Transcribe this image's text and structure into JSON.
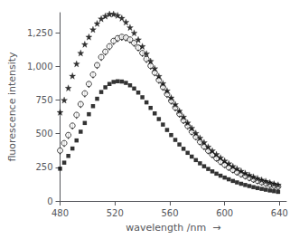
{
  "chart_data": {
    "type": "scatter",
    "xlabel": "wavelength /nm  →",
    "ylabel": "fluorescence intensity",
    "x": [
      480,
      483,
      486,
      489,
      492,
      495,
      498,
      501,
      504,
      507,
      510,
      513,
      516,
      519,
      522,
      525,
      528,
      531,
      534,
      537,
      540,
      543,
      546,
      549,
      552,
      555,
      558,
      561,
      564,
      567,
      570,
      573,
      576,
      579,
      582,
      585,
      588,
      591,
      594,
      597,
      600,
      603,
      606,
      609,
      612,
      615,
      618,
      621,
      624,
      627,
      630,
      633,
      636,
      639
    ],
    "series": [
      {
        "color": "#000000",
        "marker": "circle_open",
        "values": [
          375,
          430,
          490,
          560,
          640,
          720,
          800,
          870,
          940,
          1010,
          1070,
          1110,
          1150,
          1190,
          1210,
          1220,
          1215,
          1200,
          1175,
          1140,
          1100,
          1055,
          1005,
          955,
          900,
          848,
          795,
          745,
          695,
          648,
          600,
          558,
          515,
          477,
          440,
          406,
          374,
          345,
          318,
          293,
          270,
          250,
          232,
          215,
          200,
          186,
          173,
          161,
          150,
          140,
          131,
          122,
          114,
          107
        ]
      },
      {
        "color": "#000000",
        "marker": "star",
        "values": [
          660,
          750,
          840,
          930,
          1020,
          1100,
          1165,
          1220,
          1275,
          1320,
          1355,
          1375,
          1390,
          1390,
          1380,
          1360,
          1330,
          1290,
          1250,
          1200,
          1150,
          1095,
          1040,
          985,
          928,
          874,
          820,
          768,
          718,
          670,
          625,
          582,
          542,
          504,
          469,
          435,
          403,
          374,
          347,
          322,
          299,
          278,
          258,
          240,
          223,
          207,
          193,
          180,
          168,
          157,
          147,
          137,
          128,
          120
        ]
      },
      {
        "color": "#000000",
        "marker": "square",
        "values": [
          240,
          285,
          335,
          390,
          450,
          515,
          580,
          645,
          705,
          760,
          810,
          845,
          870,
          885,
          890,
          888,
          878,
          860,
          836,
          806,
          771,
          733,
          692,
          651,
          609,
          568,
          528,
          490,
          454,
          420,
          388,
          358,
          330,
          304,
          280,
          258,
          238,
          220,
          203,
          188,
          174,
          161,
          149,
          138,
          128,
          119,
          111,
          103,
          96,
          90,
          84,
          78,
          73,
          68
        ]
      },
      {
        "color": "#000000",
        "marker": "vline",
        "values": [
          370,
          425,
          485,
          555,
          635,
          715,
          795,
          865,
          935,
          1005,
          1065,
          1105,
          1145,
          1185,
          1205,
          1215,
          1210,
          1195,
          1170,
          1135,
          1095,
          1050,
          1000,
          950,
          895,
          843,
          790,
          740,
          690,
          643,
          596,
          554,
          512,
          474,
          437,
          403,
          371,
          342,
          315,
          290,
          267,
          247,
          229,
          212,
          197,
          183,
          170,
          158,
          148,
          138,
          129,
          120,
          112,
          105
        ]
      }
    ],
    "xlim": [
      480,
      645
    ],
    "xticks": [
      480,
      520,
      560,
      600,
      640
    ],
    "ylim": [
      0,
      1400
    ],
    "yticks": [
      0,
      250,
      500,
      750,
      1000,
      1250
    ],
    "grid": false
  }
}
